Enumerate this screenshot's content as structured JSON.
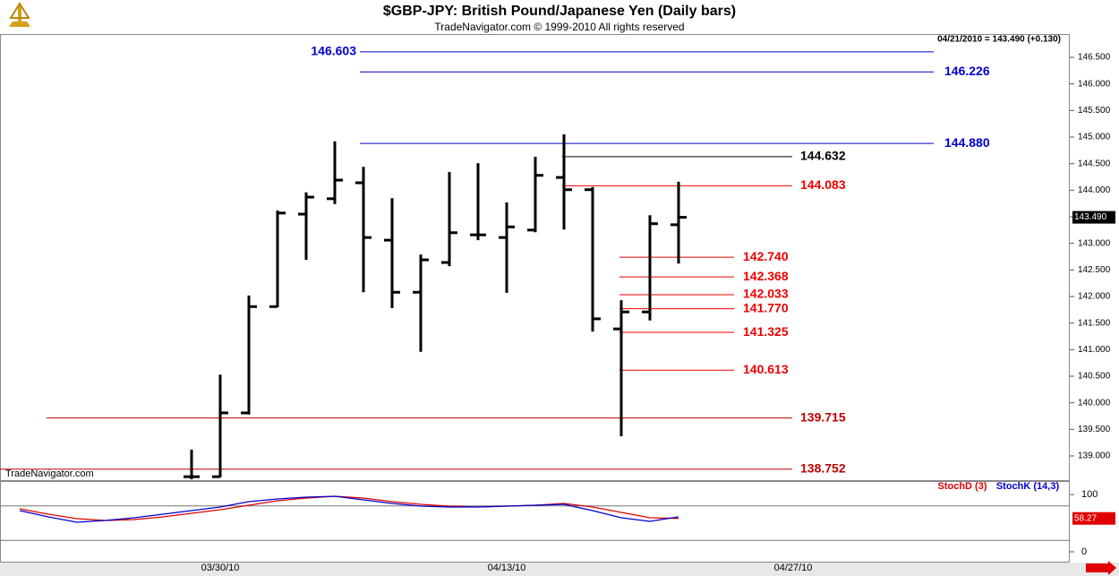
{
  "chart_data": {
    "type": "ohlc",
    "title": "$GBP-JPY:  British Pound/Japanese Yen  (Daily bars)",
    "subtitle": "TradeNavigator.com © 1999-2010 All rights reserved",
    "info": "04/21/2010 = 143.490 (+0.130)",
    "watermark": "TradeNavigator.com",
    "categories": [
      null,
      null,
      null,
      null,
      null,
      null,
      null,
      "03/30/10",
      null,
      null,
      null,
      null,
      null,
      null,
      null,
      null,
      null,
      "04/13/10",
      null,
      null,
      null,
      null,
      null,
      null,
      null,
      null,
      null,
      "04/27/10"
    ],
    "open": [
      null,
      null,
      null,
      null,
      null,
      null,
      138.61,
      138.61,
      139.81,
      141.81,
      143.55,
      143.84,
      144.14,
      143.06,
      142.08,
      142.64,
      143.16,
      143.11,
      143.25,
      144.24,
      144.01,
      141.39,
      141.71,
      143.35,
      null,
      null,
      null,
      null
    ],
    "high": [
      null,
      null,
      null,
      null,
      null,
      null,
      139.12,
      140.53,
      142.02,
      143.62,
      143.96,
      144.92,
      144.44,
      143.85,
      142.79,
      144.34,
      144.51,
      143.77,
      144.63,
      145.05,
      144.06,
      141.93,
      143.53,
      144.16,
      null,
      null,
      null,
      null
    ],
    "low": [
      null,
      null,
      null,
      null,
      null,
      null,
      138.56,
      138.6,
      139.78,
      141.8,
      142.69,
      143.74,
      142.08,
      141.78,
      140.96,
      142.57,
      143.06,
      142.07,
      143.21,
      143.26,
      141.34,
      139.37,
      141.55,
      142.62,
      null,
      null,
      null,
      null
    ],
    "close": [
      null,
      null,
      null,
      null,
      null,
      null,
      138.61,
      139.81,
      141.81,
      143.57,
      143.87,
      144.19,
      143.11,
      142.08,
      142.69,
      143.2,
      143.16,
      143.31,
      144.28,
      144.01,
      141.58,
      141.71,
      143.37,
      143.49,
      null,
      null,
      null,
      null
    ],
    "color": "#000000",
    "ylim": [
      138.5,
      147.0
    ],
    "yticks": [
      {
        "value": 139,
        "label": "139.000"
      },
      {
        "value": 139.5,
        "label": "139.500"
      },
      {
        "value": 140,
        "label": "140.000"
      },
      {
        "value": 140.5,
        "label": "140.500"
      },
      {
        "value": 141,
        "label": "141.000"
      },
      {
        "value": 141.5,
        "label": "141.500"
      },
      {
        "value": 142,
        "label": "142.000"
      },
      {
        "value": 142.5,
        "label": "142.500"
      },
      {
        "value": 143,
        "label": "143.000"
      },
      {
        "value": 143.5,
        "label": "143.500"
      },
      {
        "value": 144,
        "label": "144.000"
      },
      {
        "value": 144.5,
        "label": "144.500"
      },
      {
        "value": 145,
        "label": "145.000"
      },
      {
        "value": 145.5,
        "label": "145.500"
      },
      {
        "value": 146,
        "label": "146.000"
      },
      {
        "value": 146.5,
        "label": "146.500"
      }
    ],
    "last_price": {
      "value": 143.49,
      "label": "143.490"
    },
    "levels": [
      {
        "value": 146.603,
        "label": "146.603",
        "color": "#0000cc"
      },
      {
        "value": 146.226,
        "label": "146.226",
        "color": "#0000cc"
      },
      {
        "value": 144.88,
        "label": "144.880",
        "color": "#0000cc"
      },
      {
        "value": 144.632,
        "label": "144.632",
        "color": "#000000"
      },
      {
        "value": 144.083,
        "label": "144.083",
        "color": "#ee0000"
      },
      {
        "value": 142.74,
        "label": "142.740",
        "color": "#ee0000"
      },
      {
        "value": 142.368,
        "label": "142.368",
        "color": "#ee0000"
      },
      {
        "value": 142.033,
        "label": "142.033",
        "color": "#ee0000"
      },
      {
        "value": 141.77,
        "label": "141.770",
        "color": "#ee0000"
      },
      {
        "value": 141.325,
        "label": "141.325",
        "color": "#ee0000"
      },
      {
        "value": 140.613,
        "label": "140.613",
        "color": "#ee0000"
      },
      {
        "value": 139.715,
        "label": "139.715",
        "color": "#c00000"
      },
      {
        "value": 138.752,
        "label": "138.752",
        "color": "#c00000"
      }
    ],
    "stoch": {
      "ylim": [
        0,
        100
      ],
      "yticks": [
        100,
        0
      ],
      "bands": [
        80,
        20
      ],
      "last_value": 58.27,
      "series": [
        {
          "name": "StochD (3)",
          "color": "#dd0000",
          "values": [
            75,
            65.6,
            57.8,
            54.7,
            56.3,
            60.9,
            67.2,
            73.4,
            81.3,
            89.1,
            93.8,
            96.9,
            93.8,
            87.5,
            82.8,
            79.7,
            78.1,
            79.7,
            81.3,
            84.4,
            78.1,
            68.8,
            59.4,
            58.27,
            null,
            null,
            null,
            null
          ]
        },
        {
          "name": "StochK (14,3)",
          "color": "#0000cc",
          "values": [
            71.9,
            60.9,
            51.6,
            54.7,
            59.4,
            65.6,
            71.9,
            78.1,
            87.5,
            92.2,
            95.3,
            96.9,
            90.6,
            84.4,
            79.7,
            78.1,
            78.1,
            79.7,
            81.3,
            82.8,
            71.9,
            59.4,
            53.1,
            60.9,
            null,
            null,
            null,
            null
          ]
        }
      ]
    }
  }
}
